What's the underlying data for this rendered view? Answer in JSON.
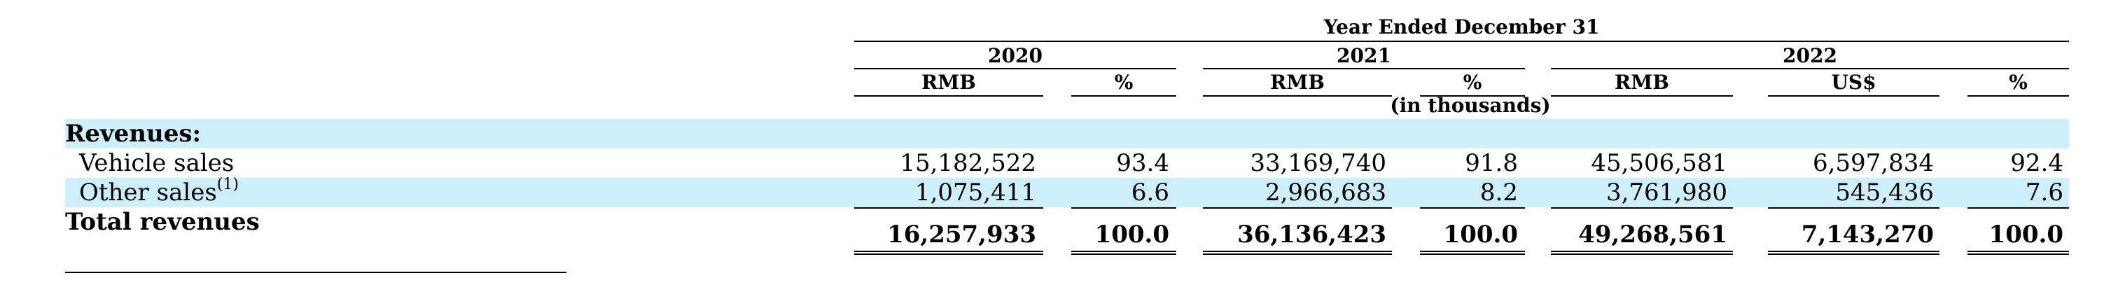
{
  "table": {
    "period_header": "Year Ended December 31",
    "years": [
      "2020",
      "2021",
      "2022"
    ],
    "columns": [
      "RMB",
      "%",
      "RMB",
      "%",
      "RMB",
      "US$",
      "%"
    ],
    "unit_note": "(in thousands)",
    "section_label": "Revenues:",
    "rows": [
      {
        "label": "Vehicle sales",
        "values": [
          "15,182,522",
          "93.4",
          "33,169,740",
          "91.8",
          "45,506,581",
          "6,597,834",
          "92.4"
        ]
      },
      {
        "label": "Other sales",
        "footnote": "(1)",
        "values": [
          "1,075,411",
          "6.6",
          "2,966,683",
          "8.2",
          "3,761,980",
          "545,436",
          "7.6"
        ]
      }
    ],
    "total": {
      "label": "Total revenues",
      "values": [
        "16,257,933",
        "100.0",
        "36,136,423",
        "100.0",
        "49,268,561",
        "7,143,270",
        "100.0"
      ]
    }
  },
  "colors": {
    "row_highlight": "#cdeefb",
    "text": "#000000"
  }
}
